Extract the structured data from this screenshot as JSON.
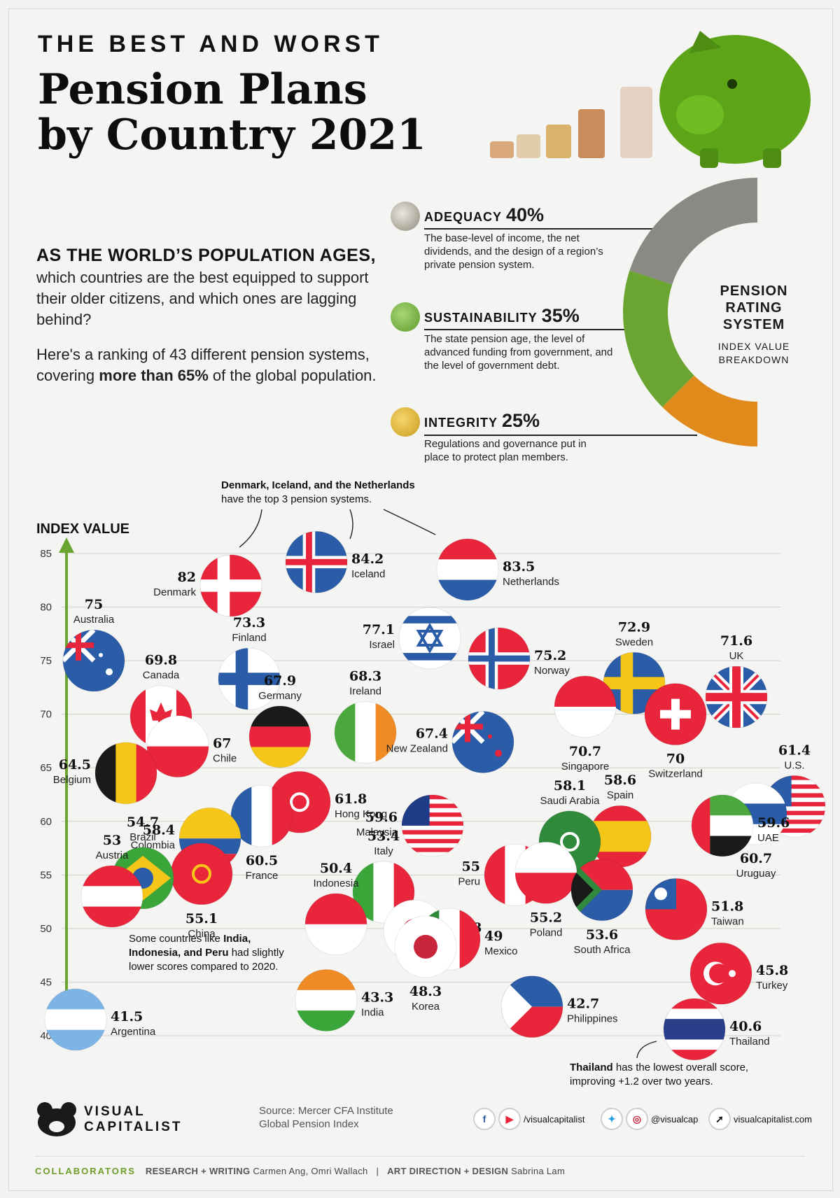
{
  "header": {
    "kicker": "THE BEST AND WORST",
    "title_line1": "Pension Plans",
    "title_line2": "by Country 2021"
  },
  "intro": {
    "lead": "AS THE WORLD’S POPULATION AGES,",
    "body": "which countries are the best equipped to support their older citizens, and which ones are lagging behind?",
    "p2_before": "Here's a ranking of 43 different pension systems, covering ",
    "p2_bold": "more than 65%",
    "p2_after": " of the global population."
  },
  "rating_system": {
    "label": "PENSION RATING SYSTEM",
    "sublabel": "INDEX VALUE BREAKDOWN",
    "factors": [
      {
        "name": "ADEQUACY",
        "pct": "40%",
        "weight": 40,
        "color": "#8a8a84",
        "icon": "coin-stack-icon",
        "desc": "The base-level of income, the net dividends, and the design of a region’s private pension system."
      },
      {
        "name": "SUSTAINABILITY",
        "pct": "35%",
        "weight": 35,
        "color": "#6aa531",
        "icon": "bank-building-icon",
        "desc": "The state pension age, the level of advanced funding from government, and the level of government debt."
      },
      {
        "name": "INTEGRITY",
        "pct": "25%",
        "weight": 25,
        "color": "#e08a1c",
        "icon": "padlock-icon",
        "desc": "Regulations and governance put in place to protect plan members."
      }
    ]
  },
  "annotations": {
    "top3_bold": "Denmark, Iceland, and the Netherlands",
    "top3_rest": "have the top 3 pension systems.",
    "lower_before": "Some countries like ",
    "lower_bold1": "India,",
    "lower_bold2": "Indonesia, and Peru",
    "lower_after1": " had slightly",
    "lower_after2": "lower scores compared to 2020.",
    "thai_bold": "Thailand",
    "thai_rest1": " has the lowest overall score,",
    "thai_rest2": "improving +1.2 over two years."
  },
  "chart_data": {
    "type": "scatter",
    "title": "THE BEST AND WORST Pension Plans by Country 2021",
    "ylabel": "INDEX VALUE",
    "ylim": [
      40,
      85
    ],
    "yticks": [
      40,
      45,
      50,
      55,
      60,
      65,
      70,
      75,
      80,
      85
    ],
    "grid": true,
    "points": [
      {
        "country": "Iceland",
        "value": 84.2,
        "flag": "nordic",
        "colors": [
          "#2a5ca8",
          "#ffffff",
          "#e8253a"
        ]
      },
      {
        "country": "Netherlands",
        "value": 83.5,
        "flag": "hstripe",
        "colors": [
          "#e8253a",
          "#ffffff",
          "#2a5ca8"
        ]
      },
      {
        "country": "Denmark",
        "value": 82,
        "flag": "nordic",
        "colors": [
          "#e8253a",
          "#ffffff",
          "#ffffff"
        ]
      },
      {
        "country": "Israel",
        "value": 77.1,
        "flag": "israel",
        "colors": [
          "#ffffff",
          "#2a5ca8"
        ]
      },
      {
        "country": "Norway",
        "value": 75.2,
        "flag": "nordic",
        "colors": [
          "#e8253a",
          "#ffffff",
          "#2a5ca8"
        ]
      },
      {
        "country": "Australia",
        "value": 75,
        "flag": "ensign",
        "colors": [
          "#2a5ca8",
          "#ffffff"
        ]
      },
      {
        "country": "Finland",
        "value": 73.3,
        "flag": "nordic",
        "colors": [
          "#ffffff",
          "#2a5ca8",
          "#2a5ca8"
        ]
      },
      {
        "country": "Sweden",
        "value": 72.9,
        "flag": "nordic",
        "colors": [
          "#2a5ca8",
          "#f5c518",
          "#f5c518"
        ]
      },
      {
        "country": "UK",
        "value": 71.6,
        "flag": "uk",
        "colors": [
          "#2a5ca8",
          "#ffffff",
          "#e8253a"
        ]
      },
      {
        "country": "Singapore",
        "value": 70.7,
        "flag": "hstripe2",
        "colors": [
          "#e8253a",
          "#ffffff"
        ]
      },
      {
        "country": "Switzerland",
        "value": 70,
        "flag": "swiss",
        "colors": [
          "#e8253a",
          "#ffffff"
        ]
      },
      {
        "country": "Canada",
        "value": 69.8,
        "flag": "canada",
        "colors": [
          "#e8253a",
          "#ffffff"
        ]
      },
      {
        "country": "Ireland",
        "value": 68.3,
        "flag": "vstripe",
        "colors": [
          "#4aa83c",
          "#ffffff",
          "#f08a24"
        ]
      },
      {
        "country": "Germany",
        "value": 67.9,
        "flag": "hstripe",
        "colors": [
          "#1a1a1a",
          "#e8253a",
          "#f5c518"
        ]
      },
      {
        "country": "New Zealand",
        "value": 67.4,
        "flag": "ensign",
        "colors": [
          "#2a5ca8",
          "#e8253a"
        ]
      },
      {
        "country": "Chile",
        "value": 67,
        "flag": "hstripe2",
        "colors": [
          "#ffffff",
          "#e8253a"
        ]
      },
      {
        "country": "Belgium",
        "value": 64.5,
        "flag": "vstripe",
        "colors": [
          "#1a1a1a",
          "#f5c518",
          "#e8253a"
        ]
      },
      {
        "country": "Hong Kong",
        "value": 61.8,
        "flag": "solid",
        "colors": [
          "#e8253a",
          "#ffffff"
        ]
      },
      {
        "country": "U.S.",
        "value": 61.4,
        "flag": "usa",
        "colors": [
          "#e8253a",
          "#ffffff",
          "#2a5ca8"
        ]
      },
      {
        "country": "Uruguay",
        "value": 60.7,
        "flag": "hstripe",
        "colors": [
          "#ffffff",
          "#2a5ca8",
          "#ffffff"
        ]
      },
      {
        "country": "France",
        "value": 60.5,
        "flag": "vstripe",
        "colors": [
          "#2a5ca8",
          "#ffffff",
          "#e8253a"
        ]
      },
      {
        "country": "Malaysia",
        "value": 59.6,
        "flag": "usa",
        "colors": [
          "#e8253a",
          "#ffffff",
          "#1f3c88"
        ]
      },
      {
        "country": "UAE",
        "value": 59.6,
        "flag": "uae",
        "colors": [
          "#4aa83c",
          "#ffffff",
          "#1a1a1a",
          "#e8253a"
        ]
      },
      {
        "country": "Spain",
        "value": 58.6,
        "flag": "spain",
        "colors": [
          "#e8253a",
          "#f5c518"
        ]
      },
      {
        "country": "Colombia",
        "value": 58.4,
        "flag": "colombia",
        "colors": [
          "#f5c518",
          "#2a5ca8",
          "#e8253a"
        ]
      },
      {
        "country": "Saudi Arabia",
        "value": 58.1,
        "flag": "solid",
        "colors": [
          "#2f8a3c",
          "#ffffff"
        ]
      },
      {
        "country": "Peru",
        "value": 55,
        "flag": "vstripe",
        "colors": [
          "#e8253a",
          "#ffffff",
          "#e8253a"
        ]
      },
      {
        "country": "Poland",
        "value": 55.2,
        "flag": "hstripe2",
        "colors": [
          "#ffffff",
          "#e8253a"
        ]
      },
      {
        "country": "China",
        "value": 55.1,
        "flag": "solid",
        "colors": [
          "#e8253a",
          "#f5c518"
        ]
      },
      {
        "country": "Brazil",
        "value": 54.7,
        "flag": "brazil",
        "colors": [
          "#3aa63a",
          "#f5c518",
          "#2a5ca8"
        ]
      },
      {
        "country": "South Africa",
        "value": 53.6,
        "flag": "southafrica",
        "colors": [
          "#2f8a3c",
          "#2a5ca8",
          "#e8253a"
        ]
      },
      {
        "country": "Italy",
        "value": 53.4,
        "flag": "vstripe",
        "colors": [
          "#3aa63a",
          "#ffffff",
          "#e8253a"
        ]
      },
      {
        "country": "Austria",
        "value": 53,
        "flag": "hstripe",
        "colors": [
          "#e8253a",
          "#ffffff",
          "#e8253a"
        ]
      },
      {
        "country": "Taiwan",
        "value": 51.8,
        "flag": "taiwan",
        "colors": [
          "#e8253a",
          "#2a5ca8"
        ]
      },
      {
        "country": "Indonesia",
        "value": 50.4,
        "flag": "hstripe2",
        "colors": [
          "#e8253a",
          "#ffffff"
        ]
      },
      {
        "country": "Japan",
        "value": 49.8,
        "flag": "japan",
        "colors": [
          "#ffffff",
          "#e8253a"
        ]
      },
      {
        "country": "Mexico",
        "value": 49,
        "flag": "vstripe",
        "colors": [
          "#2f8a3c",
          "#ffffff",
          "#e8253a"
        ]
      },
      {
        "country": "Korea",
        "value": 48.3,
        "flag": "japan",
        "colors": [
          "#ffffff",
          "#c8253a"
        ]
      },
      {
        "country": "Turkey",
        "value": 45.8,
        "flag": "turkey",
        "colors": [
          "#e8253a",
          "#ffffff"
        ]
      },
      {
        "country": "India",
        "value": 43.3,
        "flag": "hstripe",
        "colors": [
          "#f08a24",
          "#ffffff",
          "#3aa63a"
        ]
      },
      {
        "country": "Philippines",
        "value": 42.7,
        "flag": "philippines",
        "colors": [
          "#2a5ca8",
          "#e8253a",
          "#ffffff"
        ]
      },
      {
        "country": "Argentina",
        "value": 41.5,
        "flag": "hstripe",
        "colors": [
          "#7db4e6",
          "#ffffff",
          "#7db4e6"
        ]
      },
      {
        "country": "Thailand",
        "value": 40.6,
        "flag": "thai",
        "colors": [
          "#e8253a",
          "#ffffff",
          "#2a3f8a"
        ]
      }
    ]
  },
  "footer": {
    "brand_line1": "VISUAL",
    "brand_line2": "CAPITALIST",
    "source_line1": "Source: Mercer CFA Institute",
    "source_line2": "Global Pension Index",
    "social_handle1": "/visualcapitalist",
    "social_handle2": "@visualcap",
    "site": "visualcapitalist.com",
    "collaborators_label": "COLLABORATORS",
    "research_role": "RESEARCH + WRITING",
    "research_names": "Carmen Ang, Omri Wallach",
    "design_role": "ART DIRECTION + DESIGN",
    "design_names": "Sabrina Lam",
    "separator": "|"
  }
}
